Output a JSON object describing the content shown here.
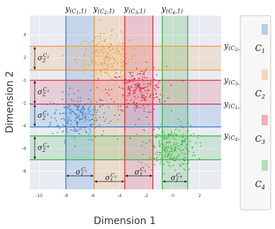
{
  "chart_data": {
    "type": "scatter",
    "xlabel": "Dimension 1",
    "ylabel": "Dimension 2",
    "xlim": [
      -10.7,
      3.6
    ],
    "ylim": [
      -9.6,
      5.7
    ],
    "xticks": [
      "-10",
      "-8",
      "-6",
      "-4",
      "-2",
      "0",
      "2"
    ],
    "yticks": [
      "4",
      "2",
      "0",
      "-2",
      "-4",
      "-6",
      "-8"
    ],
    "grid": true,
    "legend": {
      "placement": "right",
      "entries": [
        "C1",
        "C2",
        "C3",
        "C4"
      ]
    },
    "clusters": [
      {
        "name": "C1",
        "color": "#3b7dc9",
        "center": [
          -7.0,
          -3.2
        ],
        "x_interval": [
          -8.0,
          -5.9
        ],
        "y_interval": [
          -4.1,
          -2.1
        ],
        "n_points": 230
      },
      {
        "name": "C2",
        "color": "#f39a36",
        "center": [
          -4.9,
          1.9
        ],
        "x_interval": [
          -5.9,
          -3.6
        ],
        "y_interval": [
          0.9,
          3.0
        ],
        "n_points": 230
      },
      {
        "name": "C3",
        "color": "#dc2f3f",
        "center": [
          -2.6,
          -0.9
        ],
        "x_interval": [
          -3.6,
          -1.5
        ],
        "y_interval": [
          -2.1,
          0.0
        ],
        "n_points": 230
      },
      {
        "name": "C4",
        "color": "#3ab43e",
        "center": [
          -0.2,
          -5.9
        ],
        "x_interval": [
          -0.8,
          1.1
        ],
        "y_interval": [
          -7.0,
          -4.9
        ],
        "n_points": 230
      }
    ],
    "annotations": {
      "top": [
        {
          "main": "y",
          "sub": "(C",
          "idx": "1",
          "tail": ",1)"
        },
        {
          "main": "y",
          "sub": "(C",
          "idx": "2",
          "tail": ",1)"
        },
        {
          "main": "y",
          "sub": "(C",
          "idx": "3",
          "tail": ",1)"
        },
        {
          "main": "y",
          "sub": "(C",
          "idx": "4",
          "tail": ",1)"
        }
      ],
      "right": [
        {
          "main": "y",
          "sub": "(C",
          "idx": "2",
          "tail": ",2)"
        },
        {
          "main": "y",
          "sub": "(C",
          "idx": "3",
          "tail": ",2)"
        },
        {
          "main": "y",
          "sub": "(C",
          "idx": "1",
          "tail": ",2)"
        },
        {
          "main": "y",
          "sub": "(C",
          "idx": "4",
          "tail": ",2)"
        }
      ],
      "sigma_y": [
        {
          "main": "σ",
          "sub": "2",
          "sup": "C",
          "supidx": "2"
        },
        {
          "main": "σ",
          "sub": "2",
          "sup": "C",
          "supidx": "3"
        },
        {
          "main": "σ",
          "sub": "2",
          "sup": "C",
          "supidx": "1"
        },
        {
          "main": "σ",
          "sub": "2",
          "sup": "C",
          "supidx": "4"
        }
      ],
      "sigma_x": [
        {
          "main": "σ",
          "sub": "1",
          "sup": "C",
          "supidx": "1"
        },
        {
          "main": "σ",
          "sub": "1",
          "sup": "C",
          "supidx": "2"
        },
        {
          "main": "σ",
          "sub": "1",
          "sup": "C",
          "supidx": "3"
        },
        {
          "main": "σ",
          "sub": "1",
          "sup": "C",
          "supidx": "4"
        }
      ]
    }
  }
}
